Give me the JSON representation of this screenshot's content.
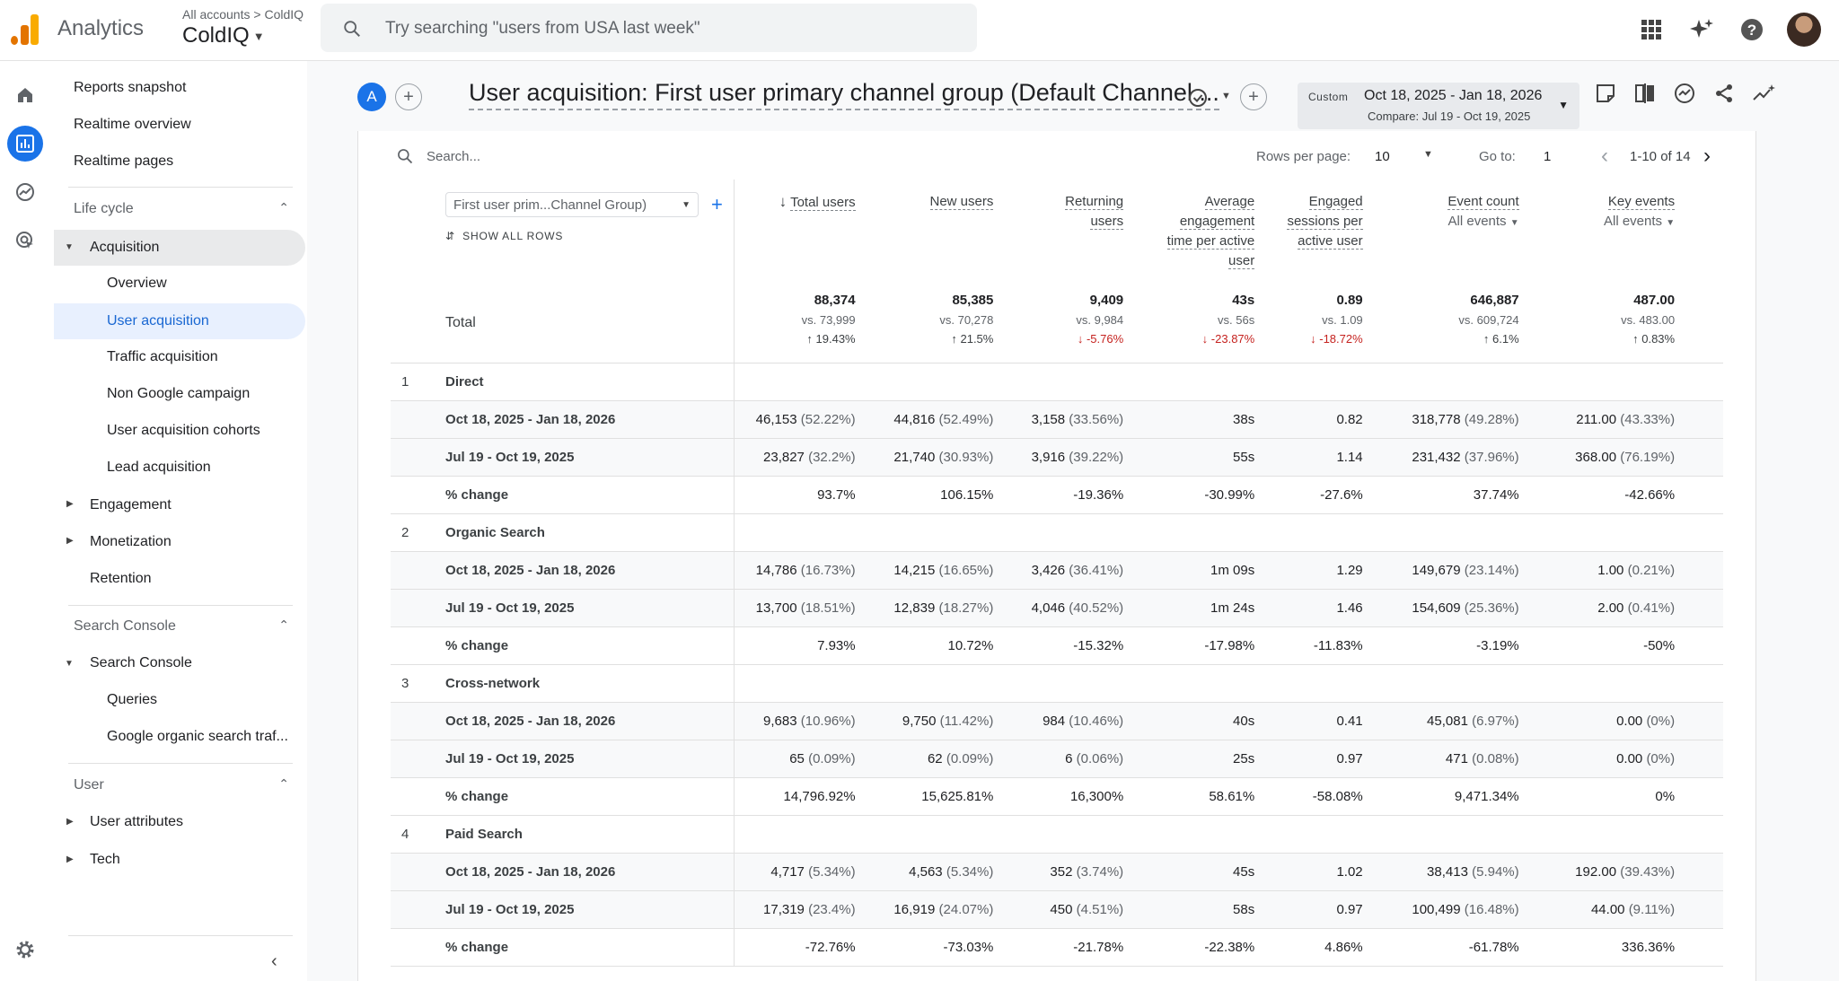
{
  "brand": {
    "app_name": "Analytics",
    "crumb_all": "All accounts",
    "crumb_sep": ">",
    "crumb_account": "ColdIQ",
    "property": "ColdIQ",
    "logo_colors": [
      "#f9ab00",
      "#e37400",
      "#e37400"
    ]
  },
  "search": {
    "placeholder": "Try searching \"users from USA last week\""
  },
  "topbar_icons": [
    "apps-icon",
    "sparkle-icon",
    "help-icon",
    "account-avatar"
  ],
  "rail_icons": [
    "home-icon",
    "reports-icon",
    "explore-icon",
    "advertising-icon",
    "settings-icon"
  ],
  "nav": {
    "reports_snapshot": "Reports snapshot",
    "realtime_overview": "Realtime overview",
    "realtime_pages": "Realtime pages",
    "lifecycle": "Life cycle",
    "acquisition": "Acquisition",
    "overview": "Overview",
    "user_acquisition": "User acquisition",
    "traffic_acquisition": "Traffic acquisition",
    "non_google": "Non Google campaign",
    "ua_cohorts": "User acquisition cohorts",
    "lead_acq": "Lead acquisition",
    "engagement": "Engagement",
    "monetization": "Monetization",
    "retention": "Retention",
    "search_console_section": "Search Console",
    "search_console": "Search Console",
    "queries": "Queries",
    "google_organic": "Google organic search traf...",
    "user_section": "User",
    "user_attributes": "User attributes",
    "tech": "Tech"
  },
  "header": {
    "comparison_chip": "A",
    "title": "User acquisition: First user primary channel group (Default Channel ...",
    "date_chip": "Custom",
    "date_range": "Oct 18, 2025 - Jan 18, 2026",
    "compare": "Compare: Jul 19 - Oct 19, 2025"
  },
  "table_toolbar": {
    "search_placeholder": "Search...",
    "rows_per_page_label": "Rows per page:",
    "rows_per_page": "10",
    "goto_label": "Go to:",
    "goto_value": "1",
    "range": "1-10 of 14"
  },
  "dimension": {
    "select": "First user prim...Channel Group)",
    "show_all": "SHOW ALL ROWS"
  },
  "columns": [
    {
      "label": "Total users",
      "sort": "↓"
    },
    {
      "label": "New users"
    },
    {
      "label": "Returning users"
    },
    {
      "label": "Average engagement time per active user"
    },
    {
      "label": "Engaged sessions per active user"
    },
    {
      "label": "Event count",
      "sub": "All events"
    },
    {
      "label": "Key events",
      "sub": "All events"
    }
  ],
  "total": {
    "label": "Total",
    "values": [
      "88,374",
      "85,385",
      "9,409",
      "43s",
      "0.89",
      "646,887",
      "487.00"
    ],
    "vs": [
      "vs. 73,999",
      "vs. 70,278",
      "vs. 9,984",
      "vs. 56s",
      "vs. 1.09",
      "vs. 609,724",
      "vs. 483.00"
    ],
    "changes": [
      {
        "dir": "up",
        "arrow": "↑",
        "text": "19.43%"
      },
      {
        "dir": "up",
        "arrow": "↑",
        "text": "21.5%"
      },
      {
        "dir": "down",
        "arrow": "↓",
        "text": "-5.76%"
      },
      {
        "dir": "down",
        "arrow": "↓",
        "text": "-23.87%"
      },
      {
        "dir": "down",
        "arrow": "↓",
        "text": "-18.72%"
      },
      {
        "dir": "up",
        "arrow": "↑",
        "text": "6.1%"
      },
      {
        "dir": "up",
        "arrow": "↑",
        "text": "0.83%"
      }
    ]
  },
  "groups": [
    {
      "index": "1",
      "name": "Direct",
      "rows": [
        {
          "label": "Oct 18, 2025 - Jan 18, 2026",
          "cells": [
            [
              "46,153",
              "(52.22%)"
            ],
            [
              "44,816",
              "(52.49%)"
            ],
            [
              "3,158",
              "(33.56%)"
            ],
            [
              "38s",
              ""
            ],
            [
              "0.82",
              ""
            ],
            [
              "318,778",
              "(49.28%)"
            ],
            [
              "211.00",
              "(43.33%)"
            ]
          ]
        },
        {
          "label": "Jul 19 - Oct 19, 2025",
          "cells": [
            [
              "23,827",
              "(32.2%)"
            ],
            [
              "21,740",
              "(30.93%)"
            ],
            [
              "3,916",
              "(39.22%)"
            ],
            [
              "55s",
              ""
            ],
            [
              "1.14",
              ""
            ],
            [
              "231,432",
              "(37.96%)"
            ],
            [
              "368.00",
              "(76.19%)"
            ]
          ]
        },
        {
          "label": "% change",
          "cells": [
            [
              "93.7%",
              ""
            ],
            [
              "106.15%",
              ""
            ],
            [
              "-19.36%",
              ""
            ],
            [
              "-30.99%",
              ""
            ],
            [
              "-27.6%",
              ""
            ],
            [
              "37.74%",
              ""
            ],
            [
              "-42.66%",
              ""
            ]
          ]
        }
      ]
    },
    {
      "index": "2",
      "name": "Organic Search",
      "rows": [
        {
          "label": "Oct 18, 2025 - Jan 18, 2026",
          "cells": [
            [
              "14,786",
              "(16.73%)"
            ],
            [
              "14,215",
              "(16.65%)"
            ],
            [
              "3,426",
              "(36.41%)"
            ],
            [
              "1m 09s",
              ""
            ],
            [
              "1.29",
              ""
            ],
            [
              "149,679",
              "(23.14%)"
            ],
            [
              "1.00",
              "(0.21%)"
            ]
          ]
        },
        {
          "label": "Jul 19 - Oct 19, 2025",
          "cells": [
            [
              "13,700",
              "(18.51%)"
            ],
            [
              "12,839",
              "(18.27%)"
            ],
            [
              "4,046",
              "(40.52%)"
            ],
            [
              "1m 24s",
              ""
            ],
            [
              "1.46",
              ""
            ],
            [
              "154,609",
              "(25.36%)"
            ],
            [
              "2.00",
              "(0.41%)"
            ]
          ]
        },
        {
          "label": "% change",
          "cells": [
            [
              "7.93%",
              ""
            ],
            [
              "10.72%",
              ""
            ],
            [
              "-15.32%",
              ""
            ],
            [
              "-17.98%",
              ""
            ],
            [
              "-11.83%",
              ""
            ],
            [
              "-3.19%",
              ""
            ],
            [
              "-50%",
              ""
            ]
          ]
        }
      ]
    },
    {
      "index": "3",
      "name": "Cross-network",
      "rows": [
        {
          "label": "Oct 18, 2025 - Jan 18, 2026",
          "cells": [
            [
              "9,683",
              "(10.96%)"
            ],
            [
              "9,750",
              "(11.42%)"
            ],
            [
              "984",
              "(10.46%)"
            ],
            [
              "40s",
              ""
            ],
            [
              "0.41",
              ""
            ],
            [
              "45,081",
              "(6.97%)"
            ],
            [
              "0.00",
              "(0%)"
            ]
          ]
        },
        {
          "label": "Jul 19 - Oct 19, 2025",
          "cells": [
            [
              "65",
              "(0.09%)"
            ],
            [
              "62",
              "(0.09%)"
            ],
            [
              "6",
              "(0.06%)"
            ],
            [
              "25s",
              ""
            ],
            [
              "0.97",
              ""
            ],
            [
              "471",
              "(0.08%)"
            ],
            [
              "0.00",
              "(0%)"
            ]
          ]
        },
        {
          "label": "% change",
          "cells": [
            [
              "14,796.92%",
              ""
            ],
            [
              "15,625.81%",
              ""
            ],
            [
              "16,300%",
              ""
            ],
            [
              "58.61%",
              ""
            ],
            [
              "-58.08%",
              ""
            ],
            [
              "9,471.34%",
              ""
            ],
            [
              "0%",
              ""
            ]
          ]
        }
      ]
    },
    {
      "index": "4",
      "name": "Paid Search",
      "rows": [
        {
          "label": "Oct 18, 2025 - Jan 18, 2026",
          "cells": [
            [
              "4,717",
              "(5.34%)"
            ],
            [
              "4,563",
              "(5.34%)"
            ],
            [
              "352",
              "(3.74%)"
            ],
            [
              "45s",
              ""
            ],
            [
              "1.02",
              ""
            ],
            [
              "38,413",
              "(5.94%)"
            ],
            [
              "192.00",
              "(39.43%)"
            ]
          ]
        },
        {
          "label": "Jul 19 - Oct 19, 2025",
          "cells": [
            [
              "17,319",
              "(23.4%)"
            ],
            [
              "16,919",
              "(24.07%)"
            ],
            [
              "450",
              "(4.51%)"
            ],
            [
              "58s",
              ""
            ],
            [
              "0.97",
              ""
            ],
            [
              "100,499",
              "(16.48%)"
            ],
            [
              "44.00",
              "(9.11%)"
            ]
          ]
        },
        {
          "label": "% change",
          "cells": [
            [
              "-72.76%",
              ""
            ],
            [
              "-73.03%",
              ""
            ],
            [
              "-21.78%",
              ""
            ],
            [
              "-22.38%",
              ""
            ],
            [
              "4.86%",
              ""
            ],
            [
              "-61.78%",
              ""
            ],
            [
              "336.36%",
              ""
            ]
          ]
        }
      ]
    }
  ],
  "colors": {
    "accent": "#1a73e8",
    "down": "#c5221f",
    "selected_bg": "#e8f0fe"
  }
}
